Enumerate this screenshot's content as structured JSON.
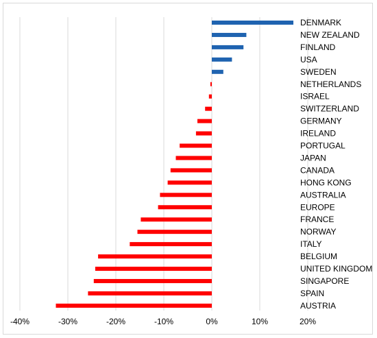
{
  "chart_data": {
    "type": "bar",
    "orientation": "horizontal",
    "title": "",
    "xlabel": "",
    "ylabel": "",
    "xlim": [
      -40,
      20
    ],
    "x_ticks": [
      -40,
      -30,
      -20,
      -10,
      0,
      10,
      20
    ],
    "x_tick_labels": [
      "-40%",
      "-30%",
      "-20%",
      "-10%",
      "0%",
      "10%",
      "20%"
    ],
    "grid": "vertical",
    "legend": "none",
    "colors": {
      "positive": "#1f63b0",
      "negative": "#ff0000",
      "grid": "#d9d9d9"
    },
    "categories": [
      "DENMARK",
      "NEW ZEALAND",
      "FINLAND",
      "USA",
      "SWEDEN",
      "NETHERLANDS",
      "ISRAEL",
      "SWITZERLAND",
      "GERMANY",
      "IRELAND",
      "PORTUGAL",
      "JAPAN",
      "CANADA",
      "HONG KONG",
      "AUSTRALIA",
      "EUROPE",
      "FRANCE",
      "NORWAY",
      "ITALY",
      "BELGIUM",
      "UNITED KINGDOM",
      "SINGAPORE",
      "SPAIN",
      "AUSTRIA"
    ],
    "values": [
      17.0,
      7.2,
      6.6,
      4.2,
      2.4,
      -0.3,
      -0.6,
      -1.4,
      -3.0,
      -3.3,
      -6.7,
      -7.5,
      -8.6,
      -9.2,
      -10.8,
      -11.2,
      -14.8,
      -15.5,
      -17.1,
      -23.7,
      -24.3,
      -24.6,
      -25.8,
      -32.5
    ]
  }
}
